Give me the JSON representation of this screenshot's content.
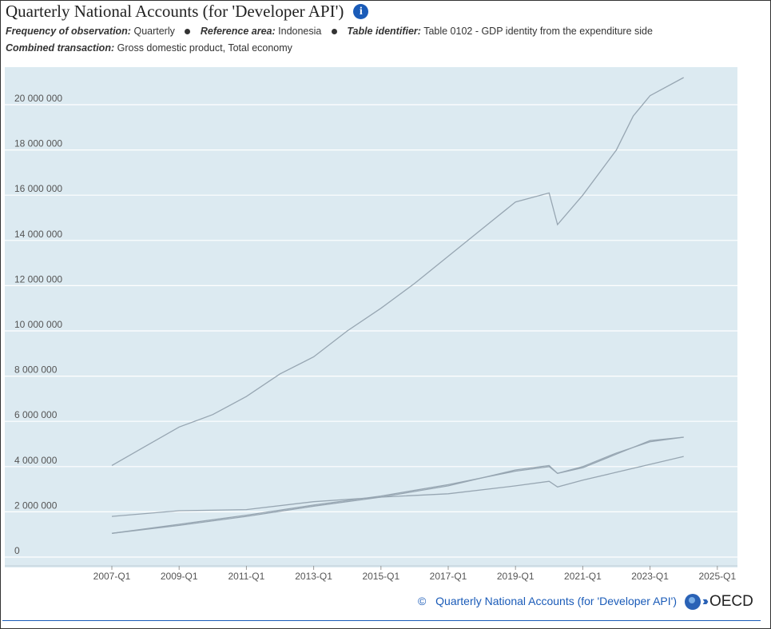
{
  "header": {
    "title": "Quarterly National Accounts (for 'Developer API')",
    "info_icon": "info-icon",
    "meta": [
      {
        "label": "Frequency of observation:",
        "value": "Quarterly"
      },
      {
        "label": "Reference area:",
        "value": "Indonesia"
      },
      {
        "label": "Table identifier:",
        "value": "Table 0102 - GDP identity from the expenditure side"
      },
      {
        "label": "Combined transaction:",
        "value": "Gross domestic product, Total economy"
      }
    ]
  },
  "footer": {
    "copyright": "©",
    "source": "Quarterly National Accounts (for 'Developer API')",
    "logo_text": "OECD"
  },
  "colors": {
    "plot_bg": "#dceaf1",
    "line": "#97a6b2",
    "grid": "#ffffff",
    "accent": "#1a5bb8"
  },
  "chart_data": {
    "type": "line",
    "title": "",
    "xlabel": "",
    "ylabel": "",
    "ylim": [
      0,
      21500000
    ],
    "x_tick_labels": [
      "2007-Q1",
      "2009-Q1",
      "2011-Q1",
      "2013-Q1",
      "2015-Q1",
      "2017-Q1",
      "2019-Q1",
      "2021-Q1",
      "2023-Q1",
      "2025-Q1"
    ],
    "y_tick_labels": [
      "0",
      "2 000 000",
      "4 000 000",
      "6 000 000",
      "8 000 000",
      "10 000 000",
      "12 000 000",
      "14 000 000",
      "16 000 000",
      "18 000 000",
      "20 000 000"
    ],
    "y_ticks": [
      0,
      2000000,
      4000000,
      6000000,
      8000000,
      10000000,
      12000000,
      14000000,
      16000000,
      18000000,
      20000000
    ],
    "grid": true,
    "legend": "none",
    "series": [
      {
        "x": [
          "2007-Q1",
          "2008-Q1",
          "2009-Q1",
          "2010-Q1",
          "2011-Q1",
          "2012-Q1",
          "2013-Q1",
          "2014-Q1",
          "2015-Q1",
          "2016-Q1",
          "2017-Q1",
          "2018-Q1",
          "2019-Q1",
          "2020-Q1",
          "2020-Q2",
          "2021-Q1",
          "2022-Q1",
          "2022-Q3",
          "2023-Q1",
          "2024-Q1"
        ],
        "values": [
          4050000,
          4900000,
          5750000,
          6300000,
          7100000,
          8100000,
          8850000,
          10000000,
          11000000,
          12100000,
          13300000,
          14500000,
          15700000,
          16100000,
          14700000,
          16000000,
          18000000,
          19500000,
          20400000,
          21200000
        ]
      },
      {
        "x": [
          "2007-Q1",
          "2009-Q1",
          "2011-Q1",
          "2013-Q1",
          "2015-Q1",
          "2017-Q1",
          "2019-Q1",
          "2020-Q1",
          "2020-Q2",
          "2021-Q1",
          "2022-Q1",
          "2023-Q1",
          "2024-Q1"
        ],
        "values": [
          1800000,
          2050000,
          2100000,
          2450000,
          2650000,
          2800000,
          3150000,
          3350000,
          3100000,
          3400000,
          3750000,
          4100000,
          4450000
        ]
      },
      {
        "x": [
          "2007-Q1",
          "2009-Q1",
          "2011-Q1",
          "2013-Q1",
          "2015-Q1",
          "2017-Q1",
          "2019-Q1",
          "2020-Q1",
          "2020-Q2",
          "2021-Q1",
          "2022-Q1",
          "2023-Q1",
          "2024-Q1"
        ],
        "values": [
          1050000,
          1450000,
          1850000,
          2300000,
          2700000,
          3200000,
          3800000,
          4000000,
          3700000,
          4000000,
          4600000,
          5100000,
          5300000
        ]
      },
      {
        "x": [
          "2007-Q1",
          "2009-Q1",
          "2011-Q1",
          "2013-Q1",
          "2015-Q1",
          "2017-Q1",
          "2019-Q1",
          "2020-Q1",
          "2020-Q2",
          "2021-Q1",
          "2022-Q1",
          "2023-Q1",
          "2024-Q1"
        ],
        "values": [
          1050000,
          1400000,
          1800000,
          2250000,
          2650000,
          3150000,
          3850000,
          4050000,
          3700000,
          3950000,
          4550000,
          5150000,
          5300000
        ]
      }
    ]
  }
}
